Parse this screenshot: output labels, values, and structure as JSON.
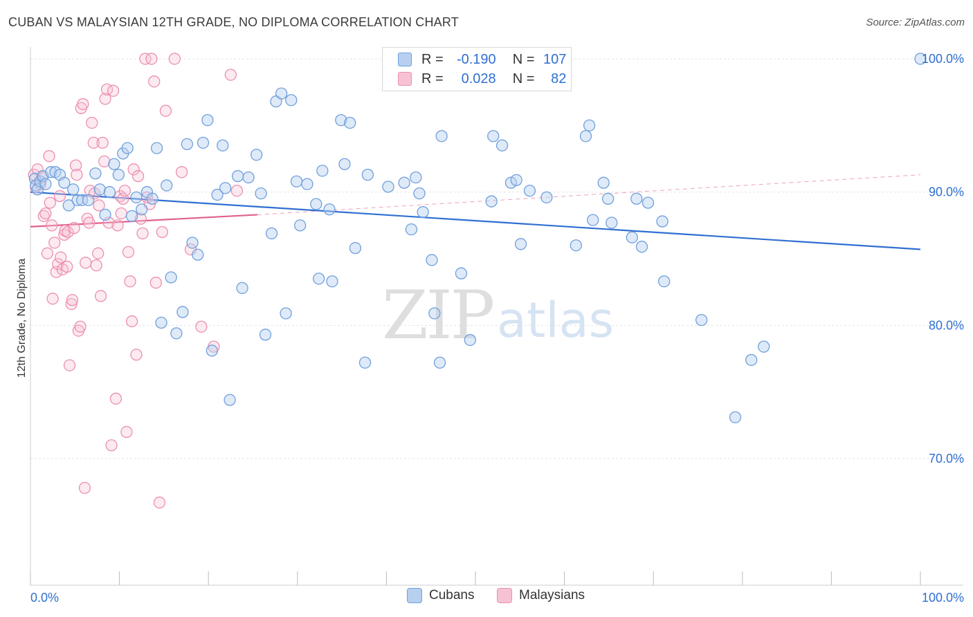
{
  "title": "CUBAN VS MALAYSIAN 12TH GRADE, NO DIPLOMA CORRELATION CHART",
  "source": "Source: ZipAtlas.com",
  "watermark": {
    "zip": "ZIP",
    "atlas": "atlas"
  },
  "legend_top": {
    "rows": [
      {
        "r_label": "R =",
        "r_value": "-0.190",
        "n_label": "N =",
        "n_value": "107"
      },
      {
        "r_label": "R =",
        "r_value": "0.028",
        "n_label": "N =",
        "n_value": "82"
      }
    ]
  },
  "legend_bottom": {
    "cubans": "Cubans",
    "malaysians": "Malaysians"
  },
  "colors": {
    "cubans_fill": "#b7d0f0",
    "cubans_stroke": "#6f9fdc",
    "cubans_line": "#2f6fd1",
    "malaysians_fill": "#f7c2d4",
    "malaysians_stroke": "#ec8fb0",
    "malaysians_line": "#e0608e",
    "axis_label": "#2f6fd1",
    "grid": "#e2e2e2"
  },
  "chart_data": {
    "type": "scatter",
    "title": "CUBAN VS MALAYSIAN 12TH GRADE, NO DIPLOMA CORRELATION CHART",
    "xlabel": "",
    "ylabel": "12th Grade, No Diploma",
    "xlim": [
      0,
      100
    ],
    "ylim": [
      60.5,
      101.3
    ],
    "x_tick_labels": [
      {
        "value": 0,
        "label": "0.0%"
      },
      {
        "value": 100,
        "label": "100.0%"
      }
    ],
    "y_tick_labels": [
      {
        "value": 100,
        "label": "100.0%"
      },
      {
        "value": 90,
        "label": "90.0%"
      },
      {
        "value": 80,
        "label": "80.0%"
      },
      {
        "value": 70,
        "label": "70.0%"
      }
    ],
    "grid": true,
    "legend": "top-center",
    "series": [
      {
        "name": "Cubans",
        "r": -0.19,
        "n": 107,
        "trend": {
          "x0": 0,
          "y0": 90.0,
          "x1": 100,
          "y1": 85.7
        },
        "points": [
          [
            0.5,
            91
          ],
          [
            0.6,
            90.5
          ],
          [
            0.8,
            90.2
          ],
          [
            1.1,
            90.8
          ],
          [
            1.4,
            91.2
          ],
          [
            1.7,
            90.6
          ],
          [
            2.3,
            91.5
          ],
          [
            2.8,
            91.5
          ],
          [
            3.3,
            91.3
          ],
          [
            3.8,
            90.7
          ],
          [
            4.3,
            89.0
          ],
          [
            4.8,
            90.2
          ],
          [
            5.3,
            89.4
          ],
          [
            5.8,
            89.4
          ],
          [
            6.5,
            89.4
          ],
          [
            7.3,
            91.4
          ],
          [
            7.8,
            90.2
          ],
          [
            8.4,
            88.3
          ],
          [
            8.9,
            90.0
          ],
          [
            9.4,
            92.1
          ],
          [
            9.9,
            91.3
          ],
          [
            10.4,
            92.9
          ],
          [
            10.9,
            93.3
          ],
          [
            11.4,
            88.2
          ],
          [
            11.9,
            89.6
          ],
          [
            12.5,
            88.7
          ],
          [
            13.1,
            90.0
          ],
          [
            13.7,
            89.5
          ],
          [
            14.2,
            93.3
          ],
          [
            14.7,
            80.2
          ],
          [
            15.3,
            90.5
          ],
          [
            15.8,
            83.6
          ],
          [
            16.4,
            79.4
          ],
          [
            17.1,
            81.0
          ],
          [
            17.6,
            93.6
          ],
          [
            18.2,
            86.2
          ],
          [
            18.8,
            85.3
          ],
          [
            19.4,
            93.7
          ],
          [
            19.9,
            95.4
          ],
          [
            20.4,
            78.1
          ],
          [
            21.0,
            89.8
          ],
          [
            21.6,
            93.5
          ],
          [
            21.9,
            90.3
          ],
          [
            22.4,
            74.4
          ],
          [
            23.3,
            91.2
          ],
          [
            23.8,
            82.8
          ],
          [
            24.5,
            91.1
          ],
          [
            25.4,
            92.8
          ],
          [
            25.9,
            89.9
          ],
          [
            26.4,
            79.3
          ],
          [
            27.1,
            86.9
          ],
          [
            27.6,
            96.8
          ],
          [
            28.2,
            97.4
          ],
          [
            28.7,
            80.9
          ],
          [
            29.3,
            96.9
          ],
          [
            29.9,
            90.8
          ],
          [
            30.3,
            87.5
          ],
          [
            31.1,
            90.6
          ],
          [
            32.1,
            89.1
          ],
          [
            32.4,
            83.5
          ],
          [
            32.8,
            91.6
          ],
          [
            33.6,
            88.7
          ],
          [
            33.9,
            83.3
          ],
          [
            34.9,
            95.4
          ],
          [
            35.3,
            92.1
          ],
          [
            35.9,
            95.2
          ],
          [
            36.5,
            85.8
          ],
          [
            37.6,
            77.2
          ],
          [
            37.9,
            91.3
          ],
          [
            40.2,
            90.4
          ],
          [
            42.0,
            90.7
          ],
          [
            42.8,
            87.2
          ],
          [
            43.3,
            91.1
          ],
          [
            43.7,
            89.9
          ],
          [
            44.1,
            88.5
          ],
          [
            45.1,
            84.9
          ],
          [
            45.4,
            80.9
          ],
          [
            46.0,
            77.2
          ],
          [
            46.2,
            94.2
          ],
          [
            48.4,
            83.9
          ],
          [
            49.4,
            78.9
          ],
          [
            51.8,
            89.3
          ],
          [
            52.0,
            94.2
          ],
          [
            53.0,
            93.5
          ],
          [
            54.0,
            90.7
          ],
          [
            54.6,
            90.9
          ],
          [
            55.1,
            86.1
          ],
          [
            56.1,
            90.1
          ],
          [
            58.0,
            89.6
          ],
          [
            61.3,
            86.0
          ],
          [
            62.4,
            94.2
          ],
          [
            62.8,
            95.0
          ],
          [
            63.2,
            87.9
          ],
          [
            64.4,
            90.7
          ],
          [
            64.9,
            89.5
          ],
          [
            65.3,
            87.7
          ],
          [
            67.6,
            86.6
          ],
          [
            68.1,
            89.5
          ],
          [
            68.7,
            85.9
          ],
          [
            69.4,
            89.2
          ],
          [
            71.0,
            87.8
          ],
          [
            71.2,
            83.3
          ],
          [
            75.4,
            80.4
          ],
          [
            79.2,
            73.1
          ],
          [
            81.0,
            77.4
          ],
          [
            82.4,
            78.4
          ],
          [
            100.0,
            100.0
          ]
        ]
      },
      {
        "name": "Malaysians",
        "r": 0.028,
        "n": 82,
        "trend": {
          "x0": 0,
          "y0": 87.4,
          "x1": 25.5,
          "y1": 88.3,
          "dashed_to": {
            "x": 100,
            "y": 91.3
          }
        },
        "points": [
          [
            0.4,
            91.3
          ],
          [
            0.6,
            90.4
          ],
          [
            0.8,
            91.7
          ],
          [
            1.1,
            90.6
          ],
          [
            1.3,
            91.1
          ],
          [
            1.5,
            88.2
          ],
          [
            1.7,
            88.4
          ],
          [
            1.9,
            85.4
          ],
          [
            2.1,
            92.7
          ],
          [
            2.2,
            89.2
          ],
          [
            2.4,
            87.5
          ],
          [
            2.5,
            82.0
          ],
          [
            2.7,
            86.2
          ],
          [
            2.9,
            84.0
          ],
          [
            3.1,
            84.6
          ],
          [
            3.3,
            89.7
          ],
          [
            3.4,
            85.1
          ],
          [
            3.6,
            84.2
          ],
          [
            3.8,
            86.8
          ],
          [
            3.9,
            87.1
          ],
          [
            4.1,
            84.4
          ],
          [
            4.2,
            87.0
          ],
          [
            4.4,
            77.0
          ],
          [
            4.6,
            81.6
          ],
          [
            4.7,
            81.9
          ],
          [
            4.9,
            87.3
          ],
          [
            5.1,
            92.0
          ],
          [
            5.2,
            91.3
          ],
          [
            5.4,
            79.6
          ],
          [
            5.6,
            79.9
          ],
          [
            5.7,
            96.3
          ],
          [
            5.9,
            96.6
          ],
          [
            6.1,
            67.8
          ],
          [
            6.2,
            84.7
          ],
          [
            6.4,
            88.0
          ],
          [
            6.6,
            87.7
          ],
          [
            6.7,
            90.1
          ],
          [
            6.9,
            95.2
          ],
          [
            7.1,
            93.7
          ],
          [
            7.2,
            89.9
          ],
          [
            7.4,
            84.5
          ],
          [
            7.6,
            85.4
          ],
          [
            7.7,
            89.0
          ],
          [
            7.9,
            82.2
          ],
          [
            8.1,
            93.7
          ],
          [
            8.3,
            92.3
          ],
          [
            8.4,
            97.0
          ],
          [
            8.6,
            97.7
          ],
          [
            8.8,
            87.7
          ],
          [
            9.1,
            71.0
          ],
          [
            9.3,
            97.6
          ],
          [
            9.6,
            74.5
          ],
          [
            9.8,
            87.5
          ],
          [
            10.1,
            89.7
          ],
          [
            10.2,
            88.4
          ],
          [
            10.4,
            89.5
          ],
          [
            10.6,
            90.1
          ],
          [
            10.8,
            72.0
          ],
          [
            11.0,
            85.5
          ],
          [
            11.2,
            83.3
          ],
          [
            11.4,
            80.3
          ],
          [
            11.6,
            91.7
          ],
          [
            11.9,
            77.8
          ],
          [
            12.1,
            91.2
          ],
          [
            12.4,
            88.0
          ],
          [
            12.6,
            86.9
          ],
          [
            12.9,
            100.0
          ],
          [
            13.1,
            89.6
          ],
          [
            13.4,
            89.1
          ],
          [
            13.6,
            100.0
          ],
          [
            13.9,
            98.3
          ],
          [
            14.1,
            83.2
          ],
          [
            14.5,
            66.7
          ],
          [
            14.8,
            87.0
          ],
          [
            15.2,
            96.1
          ],
          [
            16.2,
            100.0
          ],
          [
            17.0,
            91.5
          ],
          [
            18.0,
            85.7
          ],
          [
            19.2,
            79.9
          ],
          [
            20.6,
            78.4
          ],
          [
            22.5,
            98.8
          ],
          [
            23.2,
            90.1
          ]
        ]
      }
    ]
  }
}
